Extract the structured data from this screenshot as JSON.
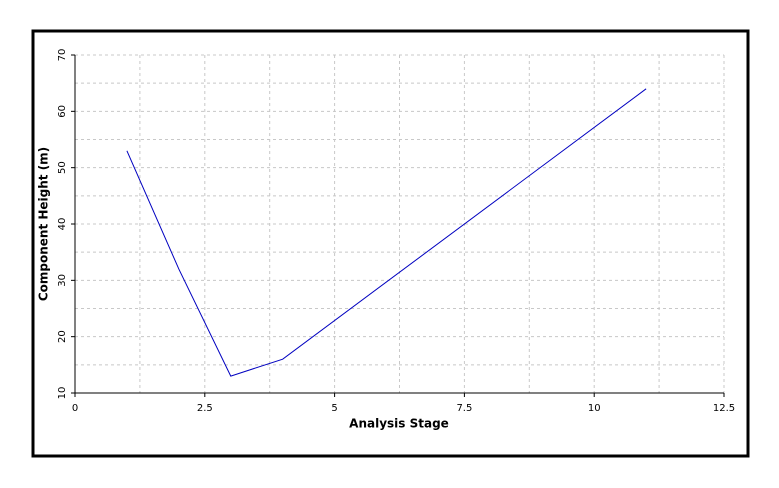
{
  "chart_data": {
    "type": "line",
    "x_label": "Analysis Stage",
    "y_label": "Component Height (m)",
    "x": [
      1,
      2,
      3,
      4,
      11
    ],
    "series": [
      {
        "values": [
          53,
          32,
          13,
          16,
          64
        ],
        "color": "#0000c0"
      }
    ],
    "xlim": [
      0,
      12.5
    ],
    "xticks": [
      0,
      2.5,
      5,
      7.5,
      10,
      12.5
    ],
    "ylim": [
      10,
      70
    ],
    "yticks": [
      10,
      20,
      30,
      40,
      50,
      60,
      70
    ],
    "grid": true
  }
}
